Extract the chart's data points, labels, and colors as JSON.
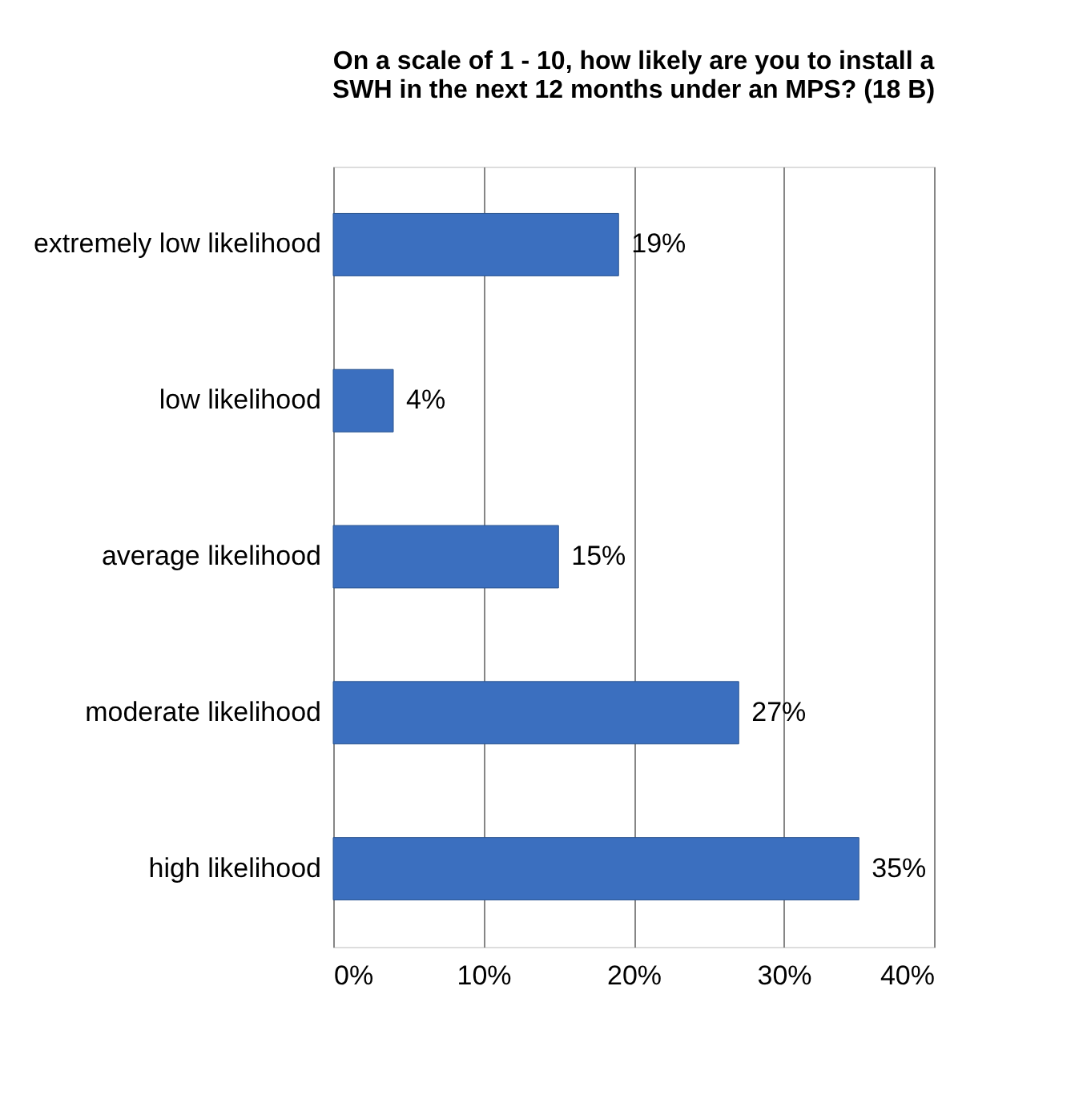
{
  "chart_data": {
    "type": "bar",
    "orientation": "horizontal",
    "title": "On a scale of 1 - 10,  how likely are you to install a SWH in the next 12 months under an MPS? (18 B)",
    "categories": [
      "extremely low likelihood",
      "low likelihood",
      "average likelihood",
      "moderate likelihood",
      "high likelihood"
    ],
    "values": [
      19,
      4,
      15,
      27,
      35
    ],
    "value_labels": [
      "19%",
      "4%",
      "15%",
      "27%",
      "35%"
    ],
    "color": "#3b6fbf",
    "xlim": [
      0,
      40
    ],
    "xticks": [
      {
        "value": 0,
        "label": "0%"
      },
      {
        "value": 10,
        "label": "10%"
      },
      {
        "value": 20,
        "label": "20%"
      },
      {
        "value": 30,
        "label": "30%"
      },
      {
        "value": 40,
        "label": "40%"
      }
    ],
    "grid": "x"
  }
}
